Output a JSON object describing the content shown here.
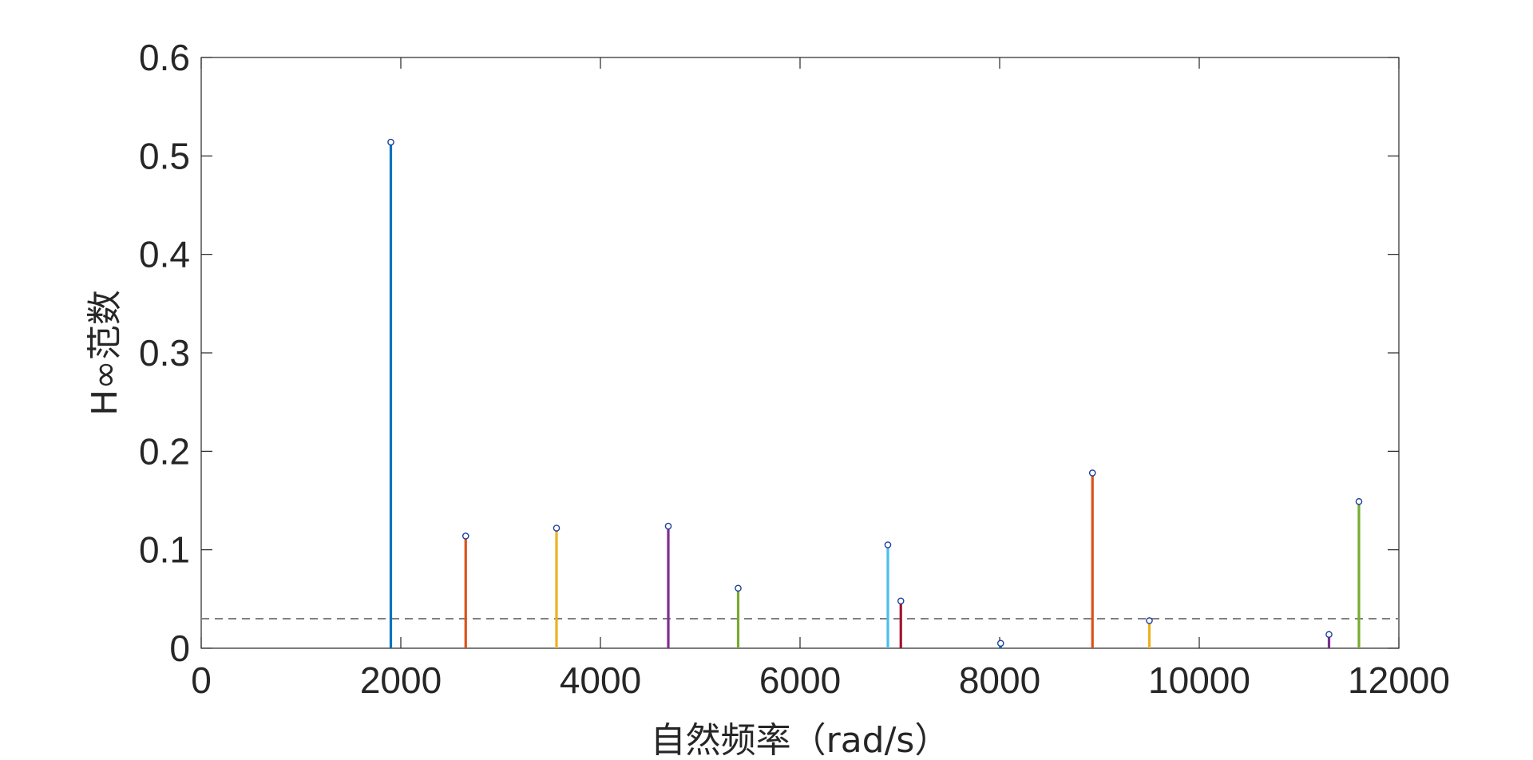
{
  "chart_data": {
    "type": "stem",
    "xlabel": "自然频率（rad/s）",
    "ylabel": "H∞范数",
    "xlim": [
      0,
      12000
    ],
    "ylim": [
      0,
      0.6
    ],
    "xticks": [
      0,
      2000,
      4000,
      6000,
      8000,
      10000,
      12000
    ],
    "yticks": [
      0,
      0.1,
      0.2,
      0.3,
      0.4,
      0.5,
      0.6
    ],
    "xtick_labels": [
      "0",
      "2000",
      "4000",
      "6000",
      "8000",
      "10000",
      "12000"
    ],
    "ytick_labels": [
      "0",
      "0.1",
      "0.2",
      "0.3",
      "0.4",
      "0.5",
      "0.6"
    ],
    "threshold": 0.03,
    "threshold_color": "#808080",
    "marker_color": "#1f3f9f",
    "grid": false,
    "points": [
      {
        "x": 1900,
        "y": 0.514,
        "color": "#0072BD"
      },
      {
        "x": 2650,
        "y": 0.114,
        "color": "#D95319"
      },
      {
        "x": 3560,
        "y": 0.122,
        "color": "#EDB120"
      },
      {
        "x": 4680,
        "y": 0.124,
        "color": "#7E2F8E"
      },
      {
        "x": 5380,
        "y": 0.061,
        "color": "#77AC30"
      },
      {
        "x": 6880,
        "y": 0.105,
        "color": "#4DBEEE"
      },
      {
        "x": 7010,
        "y": 0.048,
        "color": "#A2142F"
      },
      {
        "x": 8010,
        "y": 0.005,
        "color": "#0072BD"
      },
      {
        "x": 8930,
        "y": 0.178,
        "color": "#D95319"
      },
      {
        "x": 9500,
        "y": 0.028,
        "color": "#EDB120"
      },
      {
        "x": 11300,
        "y": 0.014,
        "color": "#7E2F8E"
      },
      {
        "x": 11600,
        "y": 0.149,
        "color": "#77AC30"
      }
    ]
  }
}
